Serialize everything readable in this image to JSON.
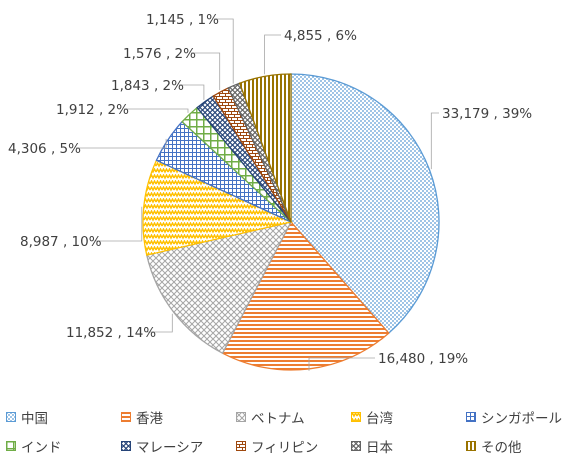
{
  "chart_data": {
    "type": "pie",
    "title": "",
    "legend_position": "bottom",
    "slices": [
      {
        "name": "中国",
        "value": 33179,
        "percent": 39,
        "label": "33,179 , 39%",
        "color": "#5b9bd5",
        "pattern": "dots"
      },
      {
        "name": "香港",
        "value": 16480,
        "percent": 19,
        "label": "16,480 , 19%",
        "color": "#ed7d31",
        "pattern": "hlines"
      },
      {
        "name": "ベトナム",
        "value": 11852,
        "percent": 14,
        "label": "11,852 , 14%",
        "color": "#a5a5a5",
        "pattern": "crosshatch"
      },
      {
        "name": "台湾",
        "value": 8987,
        "percent": 10,
        "label": "8,987 , 10%",
        "color": "#ffc000",
        "pattern": "zigzag"
      },
      {
        "name": "シンガポール",
        "value": 4306,
        "percent": 5,
        "label": "4,306 , 5%",
        "color": "#4472c4",
        "pattern": "grid"
      },
      {
        "name": "インド",
        "value": 1912,
        "percent": 2,
        "label": "1,912 , 2%",
        "color": "#70ad47",
        "pattern": "largegrid"
      },
      {
        "name": "マレーシア",
        "value": 1843,
        "percent": 2,
        "label": "1,843 , 2%",
        "color": "#264478",
        "pattern": "diamond"
      },
      {
        "name": "フィリピン",
        "value": 1576,
        "percent": 2,
        "label": "1,576 , 2%",
        "color": "#9e480e",
        "pattern": "brick"
      },
      {
        "name": "日本",
        "value": 1145,
        "percent": 1,
        "label": "1,145 , 1%",
        "color": "#636363",
        "pattern": "diamond"
      },
      {
        "name": "その他",
        "value": 4855,
        "percent": 6,
        "label": "4,855 , 6%",
        "color": "#997300",
        "pattern": "vlines"
      }
    ]
  }
}
